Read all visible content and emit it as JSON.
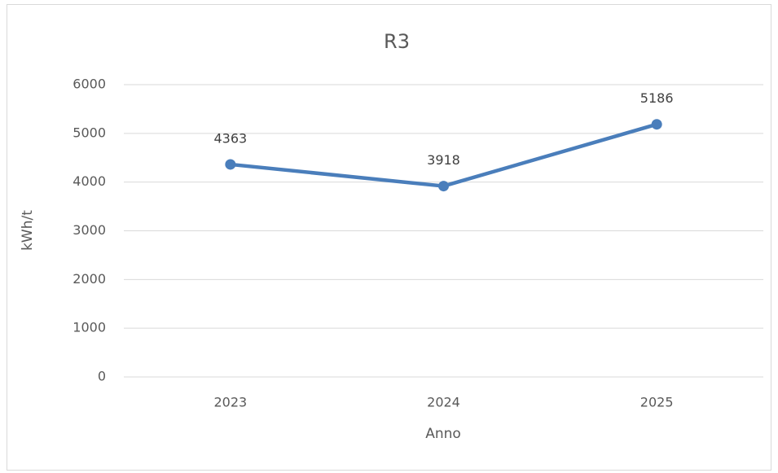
{
  "chart_data": {
    "type": "line",
    "title": "R3",
    "x_label": "Anno",
    "y_label": "kWh/t",
    "categories": [
      "2023",
      "2024",
      "2025"
    ],
    "series": [
      {
        "name": "R3",
        "color": "#4a7ebb",
        "values": [
          4363,
          3918,
          5186
        ]
      }
    ],
    "ylim": [
      0,
      6000
    ],
    "yticks": [
      0,
      1000,
      2000,
      3000,
      4000,
      5000,
      6000
    ],
    "grid": true,
    "data_labels": true
  }
}
